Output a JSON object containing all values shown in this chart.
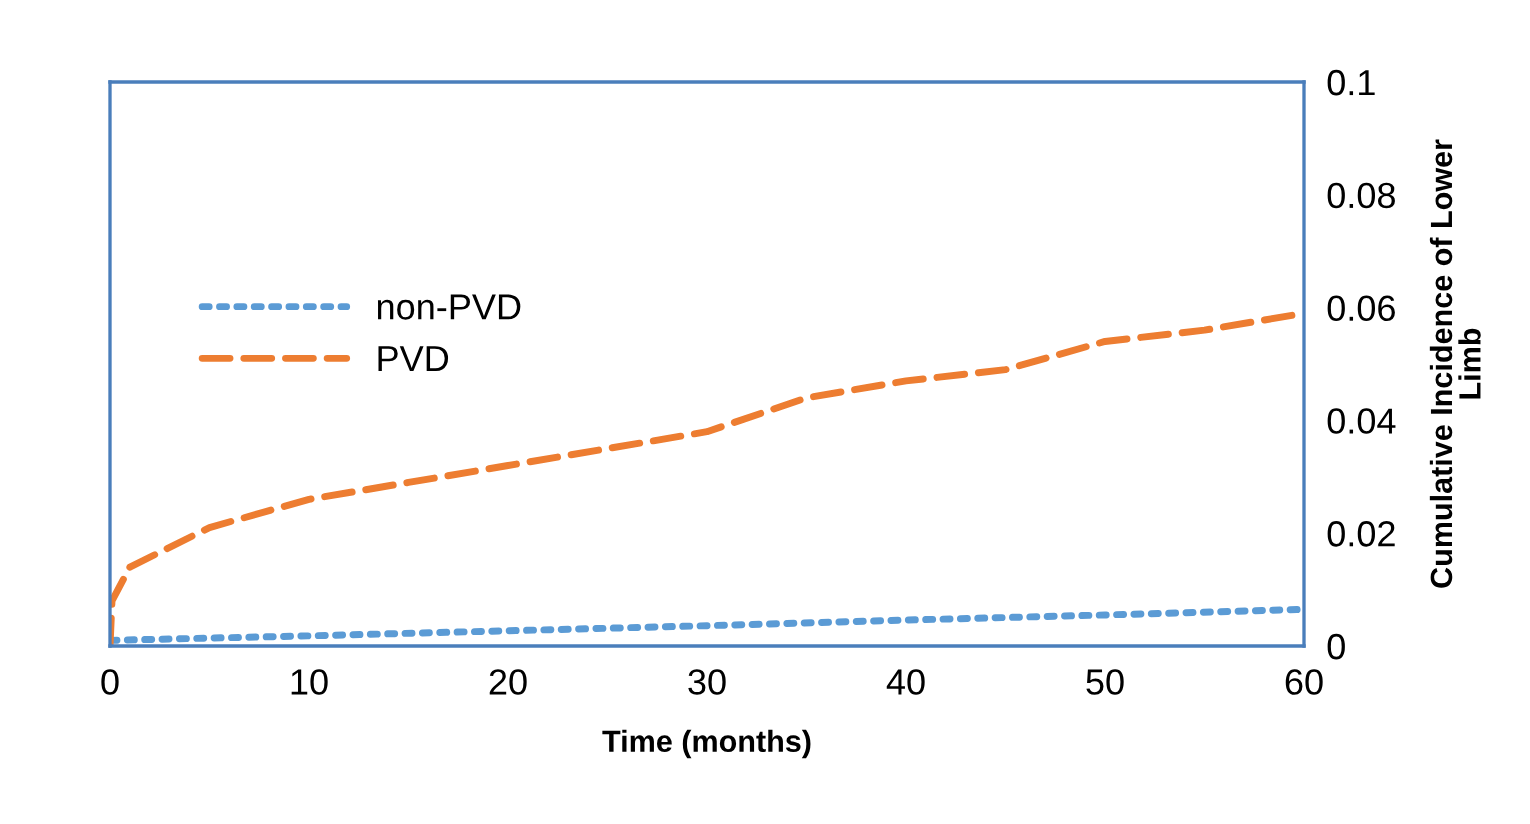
{
  "chart_data": {
    "type": "line",
    "xlabel": "Time (months)",
    "ylabel": "Cumulative Incidence of Lower\nLimb",
    "xlim": [
      0,
      60
    ],
    "xticks": [
      0,
      10,
      20,
      30,
      40,
      50,
      60
    ],
    "ylim": [
      0,
      0.1
    ],
    "yticks": [
      0,
      0.02,
      0.04,
      0.06,
      0.08,
      0.1
    ],
    "grid": false,
    "legend": "left",
    "series": [
      {
        "name": "non-PVD",
        "color": "#5b9bd5",
        "line_style": "dotted",
        "x": [
          0,
          10,
          20,
          30,
          40,
          50,
          60
        ],
        "values": [
          0.001,
          0.0018,
          0.0027,
          0.0036,
          0.0046,
          0.0055,
          0.0065
        ]
      },
      {
        "name": "PVD",
        "color": "#ed7d31",
        "line_style": "dashed",
        "x": [
          0,
          0.1,
          1,
          5,
          10,
          15,
          20,
          25,
          30,
          35,
          40,
          45,
          50,
          55,
          60
        ],
        "values": [
          0,
          0.008,
          0.014,
          0.021,
          0.026,
          0.029,
          0.032,
          0.035,
          0.038,
          0.044,
          0.047,
          0.049,
          0.054,
          0.056,
          0.059
        ]
      }
    ]
  }
}
